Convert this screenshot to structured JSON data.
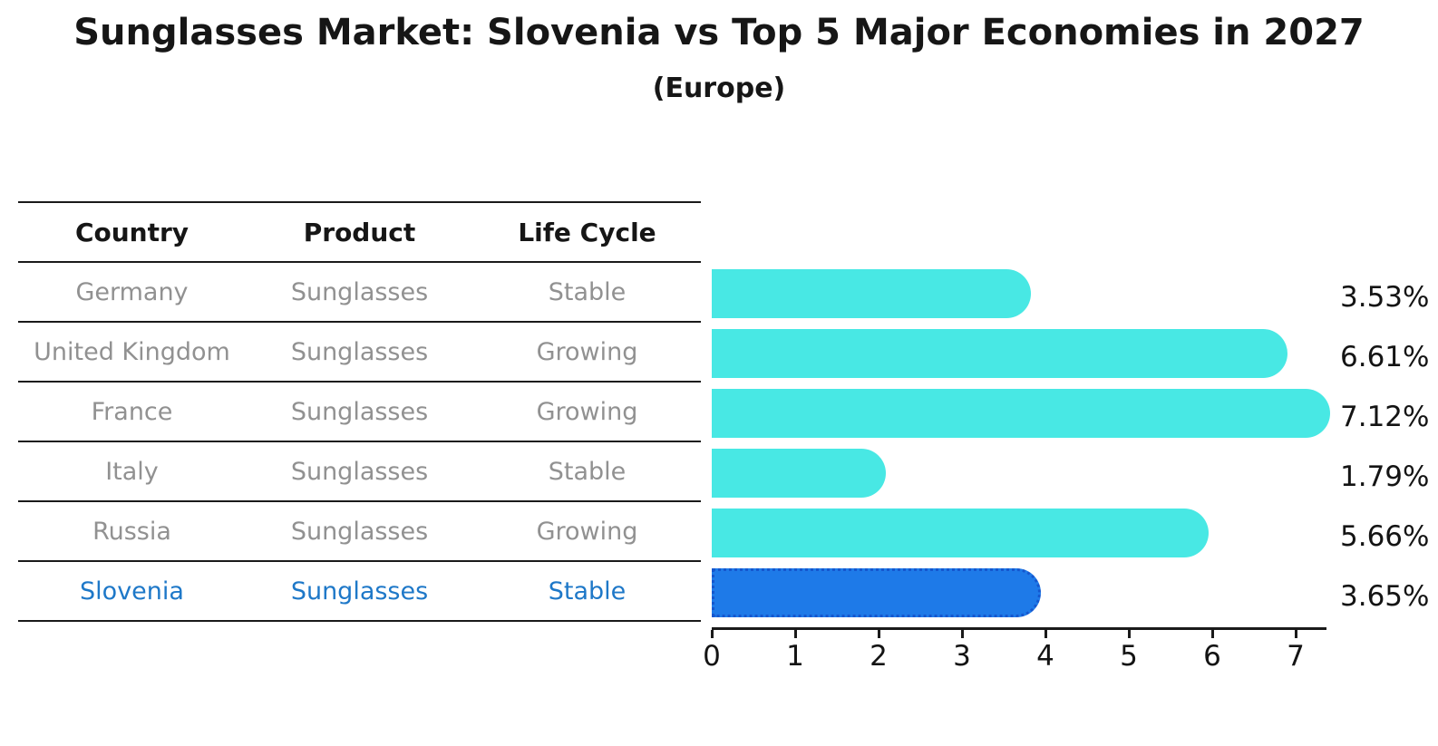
{
  "title": "Sunglasses Market: Slovenia vs Top 5 Major Economies in 2027",
  "subtitle": "(Europe)",
  "table": {
    "headers": [
      "Country",
      "Product",
      "Life Cycle"
    ],
    "rows": [
      {
        "country": "Germany",
        "product": "Sunglasses",
        "life_cycle": "Stable",
        "highlighted": false
      },
      {
        "country": "United Kingdom",
        "product": "Sunglasses",
        "life_cycle": "Growing",
        "highlighted": false
      },
      {
        "country": "France",
        "product": "Sunglasses",
        "life_cycle": "Growing",
        "highlighted": false
      },
      {
        "country": "Italy",
        "product": "Sunglasses",
        "life_cycle": "Stable",
        "highlighted": false
      },
      {
        "country": "Russia",
        "product": "Sunglasses",
        "life_cycle": "Growing",
        "highlighted": false
      },
      {
        "country": "Slovenia",
        "product": "Sunglasses",
        "life_cycle": "Stable",
        "highlighted": true
      }
    ]
  },
  "chart_data": {
    "type": "bar",
    "orientation": "horizontal",
    "title": "Sunglasses Market: Slovenia vs Top 5 Major Economies in 2027",
    "subtitle": "(Europe)",
    "categories": [
      "Germany",
      "United Kingdom",
      "France",
      "Italy",
      "Russia",
      "Slovenia"
    ],
    "values": [
      3.53,
      6.61,
      7.12,
      1.79,
      5.66,
      3.65
    ],
    "value_labels": [
      "3.53%",
      "6.61%",
      "7.12%",
      "1.79%",
      "5.66%",
      "3.65%"
    ],
    "unit": "%",
    "xlim": [
      0,
      7.4
    ],
    "xticks": [
      "0",
      "1",
      "2",
      "3",
      "4",
      "5",
      "6",
      "7"
    ],
    "grid": false,
    "legend": "none",
    "highlight_index": 5,
    "colors": {
      "bar": "#48e8e4",
      "highlight_bar": "#1e7ae8",
      "highlight_border": "#1557ce",
      "muted_text": "#919191",
      "highlight_text": "#1e78c8",
      "line": "#1a1a1a"
    }
  }
}
